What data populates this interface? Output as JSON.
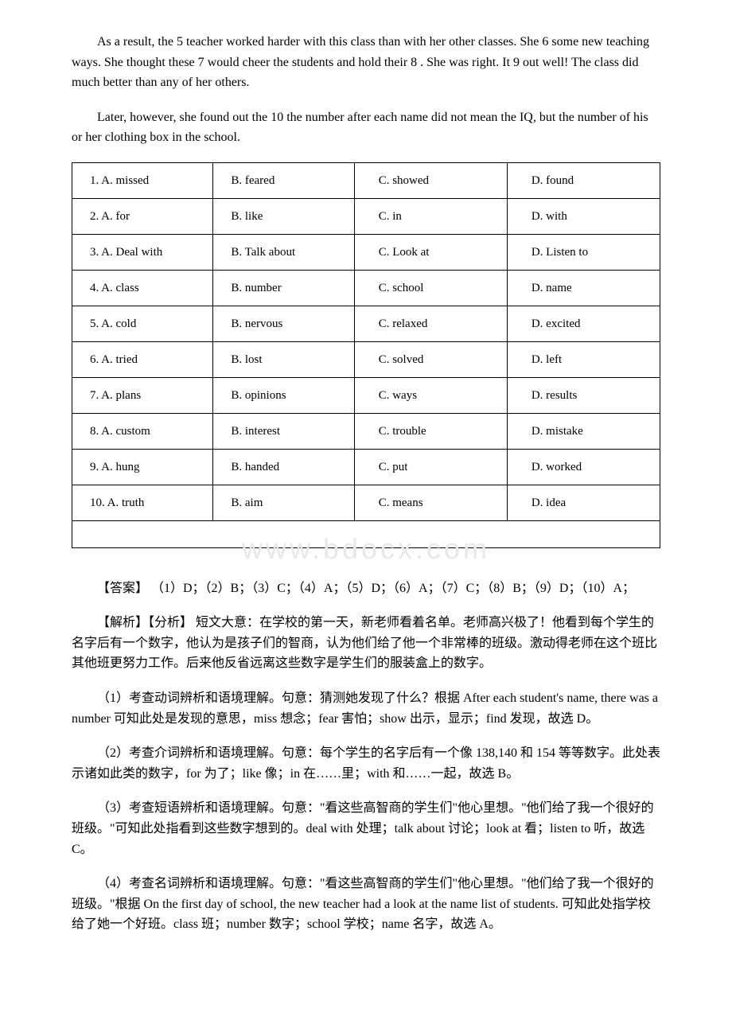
{
  "paragraphs": {
    "p1": "As a result, the  5  teacher worked harder with this class than with her other classes. She  6  some new teaching ways. She thought these  7  would cheer the students and hold their  8 . She was right. It  9  out well! The class did much better than any of her others.",
    "p2": "Later, however, she found out the  10  the number after each name did not mean the IQ, but the number of his or her clothing box in the school."
  },
  "options": {
    "rows": [
      [
        "1. A. missed",
        "B. feared",
        "C. showed",
        "D. found"
      ],
      [
        "2. A. for",
        "B. like",
        "C. in",
        "D. with"
      ],
      [
        "3. A. Deal with",
        "B. Talk about",
        "C. Look at",
        "D. Listen to"
      ],
      [
        "4. A. class",
        "B. number",
        "C. school",
        "D. name"
      ],
      [
        "5. A. cold",
        "B. nervous",
        "C. relaxed",
        "D. excited"
      ],
      [
        "6. A. tried",
        "B. lost",
        "C. solved",
        "D. left"
      ],
      [
        "7. A. plans",
        "B. opinions",
        "C. ways",
        "D. results"
      ],
      [
        "8. A. custom",
        "B. interest",
        "C. trouble",
        "D. mistake"
      ],
      [
        "9. A. hung",
        "B. handed",
        "C. put",
        "D. worked"
      ],
      [
        "10. A. truth",
        "B. aim",
        "C. means",
        "D. idea"
      ]
    ]
  },
  "watermark": "www.bdocx.com",
  "answer": "【答案】 （1）D；（2）B；（3）C；（4）A；（5）D；（6）A；（7）C；（8）B；（9）D；（10）A；",
  "analyses": {
    "intro": "【解析】【分析】 短文大意：在学校的第一天，新老师看着名单。老师高兴极了！他看到每个学生的名字后有一个数字，他认为是孩子们的智商，认为他们给了他一个非常棒的班级。激动得老师在这个班比其他班更努力工作。后来他反省远离这些数字是学生们的服装盒上的数字。",
    "a1": "（1）考查动词辨析和语境理解。句意：猜测她发现了什么？根据 After each student's name, there was a number 可知此处是发现的意思，miss 想念；fear 害怕；show 出示，显示；find 发现，故选 D。",
    "a2": "（2）考查介词辨析和语境理解。句意：每个学生的名字后有一个像 138,140 和 154 等等数字。此处表示诸如此类的数字，for 为了；like 像；in 在……里；with 和……一起，故选 B。",
    "a3": "（3）考查短语辨析和语境理解。句意：\"看这些高智商的学生们\"他心里想。\"他们给了我一个很好的班级。\"可知此处指看到这些数字想到的。deal with 处理；talk about 讨论；look at 看；listen to 听，故选 C。",
    "a4": "（4）考查名词辨析和语境理解。句意：\"看这些高智商的学生们\"他心里想。\"他们给了我一个很好的班级。\"根据  On the first day of school, the new teacher had a look at the name list of students.  可知此处指学校给了她一个好班。class 班；number 数字；school 学校；name 名字，故选 A。"
  },
  "styles": {
    "body_bg": "#ffffff",
    "text_color": "#000000",
    "border_color": "#000000",
    "watermark_color": "#e8e8e8",
    "font_size": 16,
    "watermark_font_size": 36
  }
}
